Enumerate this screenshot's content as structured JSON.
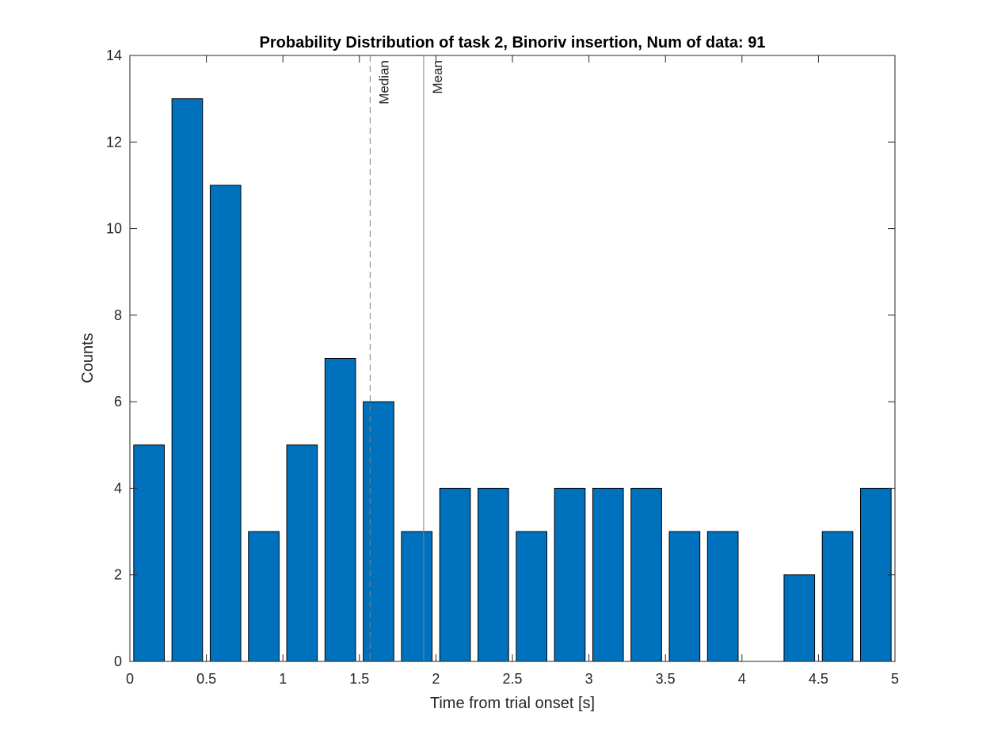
{
  "chart_data": {
    "type": "bar",
    "title": "Probability Distribution of task 2, Binoriv insertion, Num of data: 91",
    "xlabel": "Time from trial onset [s]",
    "ylabel": "Counts",
    "xlim": [
      0,
      5
    ],
    "ylim": [
      0,
      14
    ],
    "xticks": [
      "0",
      "0.5",
      "1",
      "1.5",
      "2",
      "2.5",
      "3",
      "3.5",
      "4",
      "4.5",
      "5"
    ],
    "yticks": [
      "0",
      "2",
      "4",
      "6",
      "8",
      "10",
      "12",
      "14"
    ],
    "bin_width": 0.25,
    "bar_fill_fraction": 0.8,
    "categories": [
      0.125,
      0.375,
      0.625,
      0.875,
      1.125,
      1.375,
      1.625,
      1.875,
      2.125,
      2.375,
      2.625,
      2.875,
      3.125,
      3.375,
      3.625,
      3.875,
      4.125,
      4.375,
      4.625,
      4.875
    ],
    "values": [
      5,
      13,
      11,
      3,
      5,
      7,
      6,
      3,
      4,
      4,
      3,
      4,
      4,
      4,
      3,
      3,
      0,
      2,
      3,
      4
    ],
    "bar_color": "#0072BD",
    "grid": false,
    "reference_lines": [
      {
        "label": "Median",
        "x": 1.57,
        "style": "dashed",
        "color": "#808080"
      },
      {
        "label": "Mean",
        "x": 1.92,
        "style": "solid",
        "color": "#808080"
      }
    ]
  }
}
